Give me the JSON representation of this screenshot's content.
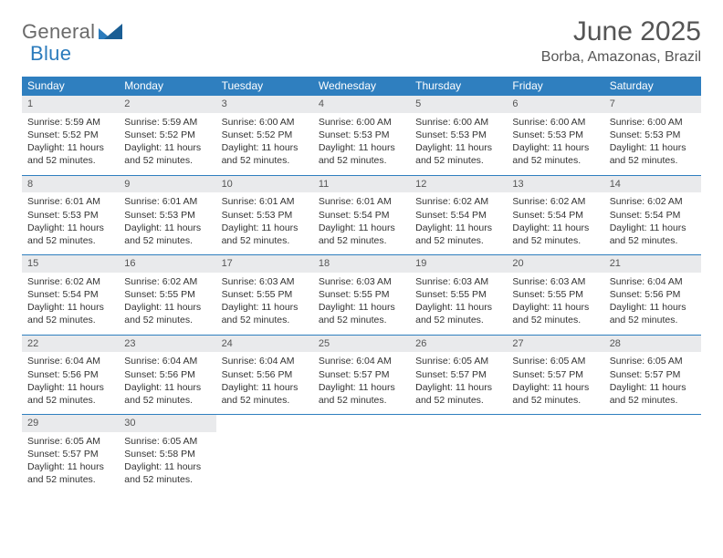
{
  "brand": {
    "name1": "General",
    "name2": "Blue"
  },
  "title": "June 2025",
  "location": "Borba, Amazonas, Brazil",
  "colors": {
    "header_bg": "#2f7fbf",
    "header_fg": "#ffffff",
    "daynum_bg": "#e9eaec",
    "rule": "#2f7fbf",
    "text": "#333333",
    "title": "#555555"
  },
  "day_headers": [
    "Sunday",
    "Monday",
    "Tuesday",
    "Wednesday",
    "Thursday",
    "Friday",
    "Saturday"
  ],
  "daylight_text": "Daylight: 11 hours and 52 minutes.",
  "days": [
    {
      "n": 1,
      "sr": "5:59 AM",
      "ss": "5:52 PM"
    },
    {
      "n": 2,
      "sr": "5:59 AM",
      "ss": "5:52 PM"
    },
    {
      "n": 3,
      "sr": "6:00 AM",
      "ss": "5:52 PM"
    },
    {
      "n": 4,
      "sr": "6:00 AM",
      "ss": "5:53 PM"
    },
    {
      "n": 5,
      "sr": "6:00 AM",
      "ss": "5:53 PM"
    },
    {
      "n": 6,
      "sr": "6:00 AM",
      "ss": "5:53 PM"
    },
    {
      "n": 7,
      "sr": "6:00 AM",
      "ss": "5:53 PM"
    },
    {
      "n": 8,
      "sr": "6:01 AM",
      "ss": "5:53 PM"
    },
    {
      "n": 9,
      "sr": "6:01 AM",
      "ss": "5:53 PM"
    },
    {
      "n": 10,
      "sr": "6:01 AM",
      "ss": "5:53 PM"
    },
    {
      "n": 11,
      "sr": "6:01 AM",
      "ss": "5:54 PM"
    },
    {
      "n": 12,
      "sr": "6:02 AM",
      "ss": "5:54 PM"
    },
    {
      "n": 13,
      "sr": "6:02 AM",
      "ss": "5:54 PM"
    },
    {
      "n": 14,
      "sr": "6:02 AM",
      "ss": "5:54 PM"
    },
    {
      "n": 15,
      "sr": "6:02 AM",
      "ss": "5:54 PM"
    },
    {
      "n": 16,
      "sr": "6:02 AM",
      "ss": "5:55 PM"
    },
    {
      "n": 17,
      "sr": "6:03 AM",
      "ss": "5:55 PM"
    },
    {
      "n": 18,
      "sr": "6:03 AM",
      "ss": "5:55 PM"
    },
    {
      "n": 19,
      "sr": "6:03 AM",
      "ss": "5:55 PM"
    },
    {
      "n": 20,
      "sr": "6:03 AM",
      "ss": "5:55 PM"
    },
    {
      "n": 21,
      "sr": "6:04 AM",
      "ss": "5:56 PM"
    },
    {
      "n": 22,
      "sr": "6:04 AM",
      "ss": "5:56 PM"
    },
    {
      "n": 23,
      "sr": "6:04 AM",
      "ss": "5:56 PM"
    },
    {
      "n": 24,
      "sr": "6:04 AM",
      "ss": "5:56 PM"
    },
    {
      "n": 25,
      "sr": "6:04 AM",
      "ss": "5:57 PM"
    },
    {
      "n": 26,
      "sr": "6:05 AM",
      "ss": "5:57 PM"
    },
    {
      "n": 27,
      "sr": "6:05 AM",
      "ss": "5:57 PM"
    },
    {
      "n": 28,
      "sr": "6:05 AM",
      "ss": "5:57 PM"
    },
    {
      "n": 29,
      "sr": "6:05 AM",
      "ss": "5:57 PM"
    },
    {
      "n": 30,
      "sr": "6:05 AM",
      "ss": "5:58 PM"
    }
  ],
  "labels": {
    "sunrise": "Sunrise:",
    "sunset": "Sunset:"
  }
}
